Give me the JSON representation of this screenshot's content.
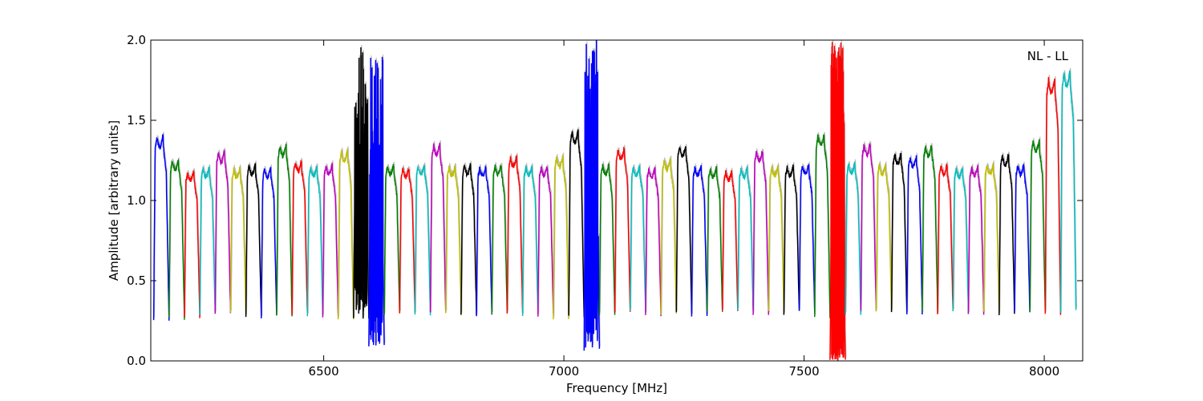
{
  "chart_data": {
    "type": "line",
    "title": "",
    "xlabel": "Frequency [MHz]",
    "ylabel": "Amplitude [arbitrary units]",
    "xlim": [
      6140,
      8080
    ],
    "ylim": [
      0,
      2.0
    ],
    "x_ticks": [
      6500,
      7000,
      7500,
      8000
    ],
    "x_tick_labels": [
      "6500",
      "7000",
      "7500",
      "8000"
    ],
    "y_ticks": [
      0,
      0.5,
      1.0,
      1.5,
      2.0
    ],
    "y_tick_labels": [
      "0.0",
      "0.5",
      "1.0",
      "1.5",
      "2.0"
    ],
    "grid": false,
    "annotation": "NL - LL",
    "color_cycle": [
      "#0000ff",
      "#008000",
      "#ff0000",
      "#00bfbf",
      "#bf00bf",
      "#bfbf00",
      "#000000"
    ],
    "shadow_color": "#bdbdbd",
    "channel_width_mhz": 32,
    "channels": [
      {
        "start": 6146,
        "peak": 1.4,
        "floor": 0.25
      },
      {
        "start": 6178,
        "peak": 1.25,
        "floor": 0.26
      },
      {
        "start": 6210,
        "peak": 1.18,
        "floor": 0.28
      },
      {
        "start": 6242,
        "peak": 1.2,
        "floor": 0.29
      },
      {
        "start": 6274,
        "peak": 1.3,
        "floor": 0.3
      },
      {
        "start": 6306,
        "peak": 1.2,
        "floor": 0.29
      },
      {
        "start": 6338,
        "peak": 1.22,
        "floor": 0.28
      },
      {
        "start": 6370,
        "peak": 1.2,
        "floor": 0.28
      },
      {
        "start": 6402,
        "peak": 1.34,
        "floor": 0.28
      },
      {
        "start": 6434,
        "peak": 1.24,
        "floor": 0.29
      },
      {
        "start": 6466,
        "peak": 1.21,
        "floor": 0.29
      },
      {
        "start": 6498,
        "peak": 1.22,
        "floor": 0.28
      },
      {
        "start": 6530,
        "peak": 1.31,
        "floor": 0.26
      },
      {
        "start": 6562,
        "peak": 1.24,
        "floor": 0.27,
        "rfi": true,
        "rfi_low": 0.26,
        "rfi_high": 2.0
      },
      {
        "start": 6594,
        "peak": 1.4,
        "floor": 0.1,
        "rfi": true,
        "rfi_low": 0.09,
        "rfi_high": 2.0
      },
      {
        "start": 6626,
        "peak": 1.22,
        "floor": 0.29
      },
      {
        "start": 6658,
        "peak": 1.2,
        "floor": 0.3
      },
      {
        "start": 6690,
        "peak": 1.22,
        "floor": 0.29
      },
      {
        "start": 6722,
        "peak": 1.35,
        "floor": 0.29
      },
      {
        "start": 6754,
        "peak": 1.21,
        "floor": 0.3
      },
      {
        "start": 6786,
        "peak": 1.22,
        "floor": 0.29
      },
      {
        "start": 6818,
        "peak": 1.21,
        "floor": 0.29
      },
      {
        "start": 6850,
        "peak": 1.22,
        "floor": 0.29
      },
      {
        "start": 6882,
        "peak": 1.27,
        "floor": 0.3
      },
      {
        "start": 6914,
        "peak": 1.21,
        "floor": 0.29
      },
      {
        "start": 6946,
        "peak": 1.21,
        "floor": 0.29
      },
      {
        "start": 6978,
        "peak": 1.27,
        "floor": 0.25
      },
      {
        "start": 7010,
        "peak": 1.43,
        "floor": 0.27
      },
      {
        "start": 7042,
        "peak": 1.5,
        "floor": 0.07,
        "rfi": true,
        "rfi_low": 0.07,
        "rfi_high": 2.0
      },
      {
        "start": 7074,
        "peak": 1.22,
        "floor": 0.28
      },
      {
        "start": 7106,
        "peak": 1.32,
        "floor": 0.3
      },
      {
        "start": 7138,
        "peak": 1.21,
        "floor": 0.3
      },
      {
        "start": 7170,
        "peak": 1.2,
        "floor": 0.29
      },
      {
        "start": 7202,
        "peak": 1.25,
        "floor": 0.29
      },
      {
        "start": 7234,
        "peak": 1.34,
        "floor": 0.29
      },
      {
        "start": 7266,
        "peak": 1.21,
        "floor": 0.29
      },
      {
        "start": 7298,
        "peak": 1.2,
        "floor": 0.3
      },
      {
        "start": 7330,
        "peak": 1.18,
        "floor": 0.3
      },
      {
        "start": 7362,
        "peak": 1.2,
        "floor": 0.3
      },
      {
        "start": 7394,
        "peak": 1.31,
        "floor": 0.29
      },
      {
        "start": 7426,
        "peak": 1.21,
        "floor": 0.3
      },
      {
        "start": 7458,
        "peak": 1.21,
        "floor": 0.3
      },
      {
        "start": 7490,
        "peak": 1.22,
        "floor": 0.3
      },
      {
        "start": 7522,
        "peak": 1.41,
        "floor": 0.28
      },
      {
        "start": 7554,
        "peak": 1.05,
        "floor": 0.0,
        "rfi": true,
        "rfi_low": 0.0,
        "rfi_high": 2.0,
        "dense": true
      },
      {
        "start": 7586,
        "peak": 1.23,
        "floor": 0.3
      },
      {
        "start": 7618,
        "peak": 1.35,
        "floor": 0.3
      },
      {
        "start": 7650,
        "peak": 1.22,
        "floor": 0.3
      },
      {
        "start": 7682,
        "peak": 1.29,
        "floor": 0.3
      },
      {
        "start": 7714,
        "peak": 1.27,
        "floor": 0.3
      },
      {
        "start": 7746,
        "peak": 1.34,
        "floor": 0.3
      },
      {
        "start": 7778,
        "peak": 1.22,
        "floor": 0.3
      },
      {
        "start": 7810,
        "peak": 1.2,
        "floor": 0.3
      },
      {
        "start": 7842,
        "peak": 1.21,
        "floor": 0.3
      },
      {
        "start": 7874,
        "peak": 1.22,
        "floor": 0.3
      },
      {
        "start": 7906,
        "peak": 1.28,
        "floor": 0.3
      },
      {
        "start": 7938,
        "peak": 1.22,
        "floor": 0.3
      },
      {
        "start": 7970,
        "peak": 1.37,
        "floor": 0.3
      },
      {
        "start": 8002,
        "peak": 1.76,
        "floor": 0.29
      },
      {
        "start": 8034,
        "peak": 1.8,
        "floor": 0.31
      }
    ]
  }
}
